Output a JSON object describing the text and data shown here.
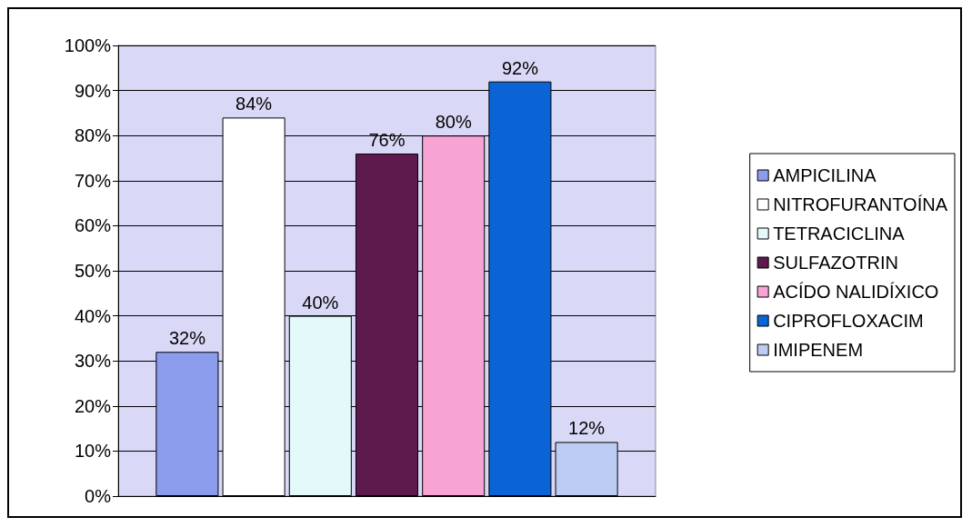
{
  "chart_data": {
    "type": "bar",
    "categories": [
      null
    ],
    "series": [
      {
        "name": "AMPICILINA",
        "color": "#8c9cec",
        "values": [
          32
        ]
      },
      {
        "name": "NITROFURANTOÍNA",
        "color": "#ffffff",
        "values": [
          84
        ]
      },
      {
        "name": "TETRACICLINA",
        "color": "#e4fafa",
        "values": [
          40
        ]
      },
      {
        "name": "SULFAZOTRIN",
        "color": "#5e1a4c",
        "values": [
          76
        ]
      },
      {
        "name": "ACÍDO NALIDÍXICO",
        "color": "#f7a3d3",
        "values": [
          80
        ]
      },
      {
        "name": "CIPROFLOXACIM",
        "color": "#0a64d6",
        "values": [
          92
        ]
      },
      {
        "name": "IMIPENEM",
        "color": "#bcccf2",
        "values": [
          12
        ]
      }
    ],
    "ylim": [
      0,
      100
    ],
    "yticks": [
      {
        "value": 0,
        "label": "0%"
      },
      {
        "value": 10,
        "label": "10%"
      },
      {
        "value": 20,
        "label": "20%"
      },
      {
        "value": 30,
        "label": "30%"
      },
      {
        "value": 40,
        "label": "40%"
      },
      {
        "value": 50,
        "label": "50%"
      },
      {
        "value": 60,
        "label": "60%"
      },
      {
        "value": 70,
        "label": "70%"
      },
      {
        "value": 80,
        "label": "80%"
      },
      {
        "value": 90,
        "label": "90%"
      },
      {
        "value": 100,
        "label": "100%"
      }
    ],
    "value_labels": [
      "32%",
      "84%",
      "40%",
      "76%",
      "80%",
      "92%",
      "12%"
    ],
    "grid": "y",
    "legend": "right"
  }
}
